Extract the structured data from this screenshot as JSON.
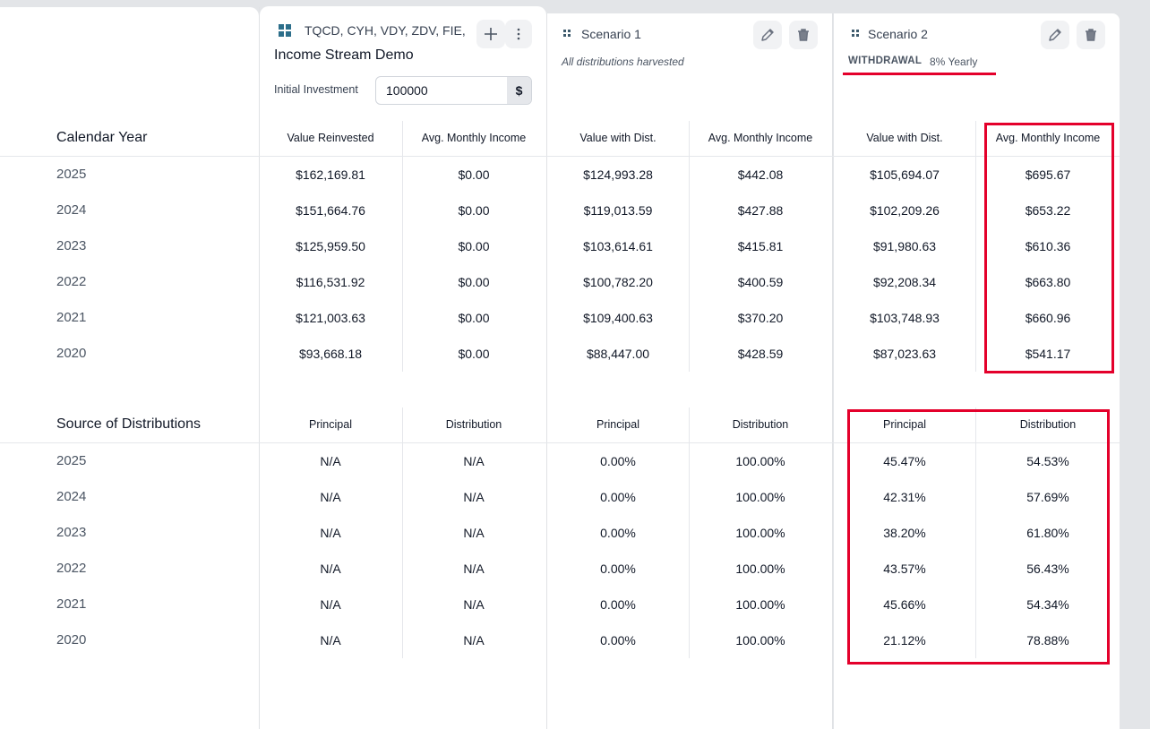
{
  "base": {
    "tickers": "TQCD, CYH, VDY, ZDV, FIE, I",
    "name": "Income Stream Demo",
    "investment_label": "Initial Investment",
    "investment_value": "100000",
    "currency_symbol": "$",
    "col1": "Value Reinvested",
    "col2": "Avg. Monthly Income"
  },
  "scenario1": {
    "title": "Scenario 1",
    "subtitle": "All distributions harvested",
    "col1": "Value with Dist.",
    "col2": "Avg. Monthly Income"
  },
  "scenario2": {
    "title": "Scenario 2",
    "badge": "WITHDRAWAL",
    "badge_detail": "8% Yearly",
    "col1": "Value with Dist.",
    "col2": "Avg. Monthly Income"
  },
  "section1": {
    "title": "Calendar Year",
    "rows": [
      {
        "year": "2025",
        "v": [
          "$162,169.81",
          "$0.00",
          "$124,993.28",
          "$442.08",
          "$105,694.07",
          "$695.67"
        ]
      },
      {
        "year": "2024",
        "v": [
          "$151,664.76",
          "$0.00",
          "$119,013.59",
          "$427.88",
          "$102,209.26",
          "$653.22"
        ]
      },
      {
        "year": "2023",
        "v": [
          "$125,959.50",
          "$0.00",
          "$103,614.61",
          "$415.81",
          "$91,980.63",
          "$610.36"
        ]
      },
      {
        "year": "2022",
        "v": [
          "$116,531.92",
          "$0.00",
          "$100,782.20",
          "$400.59",
          "$92,208.34",
          "$663.80"
        ]
      },
      {
        "year": "2021",
        "v": [
          "$121,003.63",
          "$0.00",
          "$109,400.63",
          "$370.20",
          "$103,748.93",
          "$660.96"
        ]
      },
      {
        "year": "2020",
        "v": [
          "$93,668.18",
          "$0.00",
          "$88,447.00",
          "$428.59",
          "$87,023.63",
          "$541.17"
        ]
      }
    ]
  },
  "section2": {
    "title": "Source of Distributions",
    "headers": [
      "Principal",
      "Distribution",
      "Principal",
      "Distribution",
      "Principal",
      "Distribution"
    ],
    "rows": [
      {
        "year": "2025",
        "v": [
          "N/A",
          "N/A",
          "0.00%",
          "100.00%",
          "45.47%",
          "54.53%"
        ]
      },
      {
        "year": "2024",
        "v": [
          "N/A",
          "N/A",
          "0.00%",
          "100.00%",
          "42.31%",
          "57.69%"
        ]
      },
      {
        "year": "2023",
        "v": [
          "N/A",
          "N/A",
          "0.00%",
          "100.00%",
          "38.20%",
          "61.80%"
        ]
      },
      {
        "year": "2022",
        "v": [
          "N/A",
          "N/A",
          "0.00%",
          "100.00%",
          "43.57%",
          "56.43%"
        ]
      },
      {
        "year": "2021",
        "v": [
          "N/A",
          "N/A",
          "0.00%",
          "100.00%",
          "45.66%",
          "54.34%"
        ]
      },
      {
        "year": "2020",
        "v": [
          "N/A",
          "N/A",
          "0.00%",
          "100.00%",
          "21.12%",
          "78.88%"
        ]
      }
    ]
  },
  "icons": {
    "add": "plus-icon",
    "more": "more-vertical-icon",
    "edit": "pencil-icon",
    "delete": "trash-icon",
    "drag": "drag-handle-icon",
    "portfolio": "grid-icon"
  },
  "colors": {
    "highlight": "#e4002b",
    "accent": "#2c6e8a"
  }
}
